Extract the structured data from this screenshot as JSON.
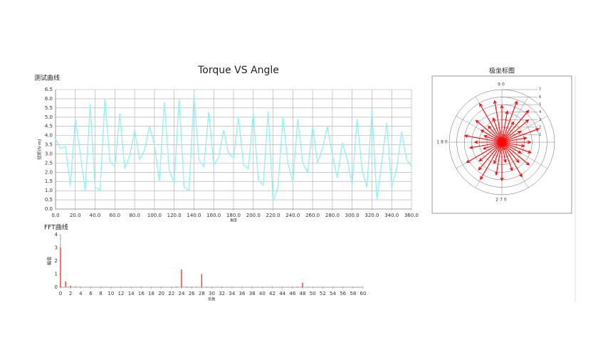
{
  "page_title": "Torque VS Angle",
  "chart_data": [
    {
      "type": "line",
      "title": "测试曲线",
      "x_label": "角度",
      "y_label": "扭矩(N·m)",
      "color": "#8ff3f3",
      "grid": true,
      "x": [
        0,
        5,
        10,
        15,
        20,
        25,
        30,
        35,
        40,
        45,
        50,
        55,
        60,
        65,
        70,
        75,
        80,
        85,
        90,
        95,
        100,
        105,
        110,
        115,
        120,
        125,
        130,
        135,
        140,
        145,
        150,
        155,
        160,
        165,
        170,
        175,
        180,
        185,
        190,
        195,
        200,
        205,
        210,
        215,
        220,
        225,
        230,
        235,
        240,
        245,
        250,
        255,
        260,
        265,
        270,
        275,
        280,
        285,
        290,
        295,
        300,
        305,
        310,
        315,
        320,
        325,
        330,
        335,
        340,
        345,
        350,
        355,
        360
      ],
      "values": [
        3.8,
        3.3,
        3.4,
        1.3,
        4.9,
        3.0,
        1.0,
        5.7,
        1.2,
        1.0,
        6.0,
        2.6,
        2.3,
        5.2,
        2.2,
        2.9,
        4.3,
        2.7,
        3.2,
        4.5,
        3.5,
        1.5,
        5.8,
        2.1,
        1.4,
        6.0,
        1.2,
        1.0,
        6.2,
        2.7,
        2.3,
        5.3,
        2.4,
        2.8,
        4.3,
        3.0,
        2.8,
        5.0,
        2.4,
        2.2,
        5.2,
        1.6,
        1.3,
        5.3,
        0.4,
        1.2,
        5.0,
        2.5,
        1.5,
        4.9,
        2.5,
        2.0,
        4.5,
        2.5,
        3.3,
        4.5,
        2.9,
        1.7,
        3.6,
        2.7,
        1.3,
        4.9,
        2.1,
        1.2,
        5.4,
        0.5,
        2.6,
        4.7,
        1.2,
        2.2,
        4.2,
        2.7,
        2.3
      ],
      "xlim": [
        0,
        360
      ],
      "xticks": [
        {
          "value": 0,
          "label": "0.0"
        },
        {
          "value": 20,
          "label": "20.0"
        },
        {
          "value": 40,
          "label": "40.0"
        },
        {
          "value": 60,
          "label": "60.0"
        },
        {
          "value": 80,
          "label": "80.0"
        },
        {
          "value": 100,
          "label": "100.0"
        },
        {
          "value": 120,
          "label": "120.0"
        },
        {
          "value": 140,
          "label": "140.0"
        },
        {
          "value": 160,
          "label": "160.0"
        },
        {
          "value": 180,
          "label": "180.0"
        },
        {
          "value": 200,
          "label": "200.0"
        },
        {
          "value": 220,
          "label": "220.0"
        },
        {
          "value": 240,
          "label": "240.0"
        },
        {
          "value": 260,
          "label": "260.0"
        },
        {
          "value": 280,
          "label": "280.0"
        },
        {
          "value": 300,
          "label": "300.0"
        },
        {
          "value": 320,
          "label": "320.0"
        },
        {
          "value": 340,
          "label": "340.0"
        },
        {
          "value": 360,
          "label": "360.0"
        }
      ],
      "ylim": [
        0,
        6.5
      ],
      "yticks": [
        {
          "value": 0,
          "label": "0.0"
        },
        0.5,
        {
          "value": 1,
          "label": "1.0"
        },
        1.5,
        {
          "value": 2,
          "label": "2.0"
        },
        2.5,
        {
          "value": 3,
          "label": "3.0"
        },
        3.5,
        {
          "value": 4,
          "label": "4.0"
        },
        4.5,
        {
          "value": 5,
          "label": "5.0"
        },
        5.5,
        {
          "value": 6,
          "label": "6.0"
        },
        6.5
      ]
    },
    {
      "type": "bar",
      "title": "FFT曲线",
      "x_label": "阶数",
      "y_label": "幅值",
      "color": "#ff3333",
      "x": [
        0,
        1,
        2,
        3,
        4,
        5,
        6,
        7,
        8,
        9,
        10,
        11,
        12,
        13,
        14,
        15,
        16,
        17,
        18,
        19,
        20,
        21,
        22,
        23,
        24,
        25,
        26,
        27,
        28,
        29,
        30,
        31,
        32,
        33,
        34,
        35,
        36,
        37,
        38,
        39,
        40,
        41,
        42,
        43,
        44,
        45,
        46,
        47,
        48,
        49,
        50,
        51,
        52,
        53,
        54,
        55,
        56,
        57,
        58,
        59,
        60
      ],
      "values": [
        3.0,
        0.45,
        0.12,
        0.05,
        0.03,
        0.02,
        0.03,
        0.02,
        0.02,
        0.03,
        0.02,
        0.02,
        0.03,
        0.02,
        0.02,
        0.02,
        0.03,
        0.02,
        0.02,
        0.02,
        0.03,
        0.02,
        0.02,
        0.04,
        1.35,
        0.05,
        0.03,
        0.04,
        1.0,
        0.04,
        0.02,
        0.02,
        0.03,
        0.02,
        0.02,
        0.02,
        0.02,
        0.02,
        0.02,
        0.02,
        0.02,
        0.02,
        0.02,
        0.02,
        0.02,
        0.02,
        0.03,
        0.04,
        0.35,
        0.03,
        0.02,
        0.02,
        0.02,
        0.02,
        0.02,
        0.02,
        0.02,
        0.02,
        0.02,
        0.02,
        0.02
      ],
      "xlim": [
        0,
        60
      ],
      "xticks": [
        0,
        2,
        4,
        6,
        8,
        10,
        12,
        14,
        16,
        18,
        20,
        22,
        24,
        26,
        28,
        30,
        32,
        34,
        36,
        38,
        40,
        42,
        44,
        46,
        48,
        50,
        52,
        54,
        56,
        58,
        60
      ],
      "ylim": [
        0,
        4
      ],
      "yticks": [
        0,
        1,
        2,
        3,
        4
      ]
    },
    {
      "type": "polar",
      "title": "极坐标图",
      "color": "#ff0000",
      "angles": [
        0,
        10,
        20,
        30,
        40,
        50,
        60,
        70,
        80,
        90,
        100,
        110,
        120,
        130,
        140,
        150,
        160,
        170,
        180,
        190,
        200,
        210,
        220,
        230,
        240,
        250,
        260,
        270,
        280,
        290,
        300,
        310,
        320,
        330,
        340,
        350
      ],
      "values": [
        3.8,
        3.3,
        5.2,
        2.9,
        4.6,
        5.5,
        3.1,
        5.8,
        4.2,
        4.9,
        5.6,
        3.4,
        5.9,
        2.8,
        4.5,
        3.2,
        2.5,
        5.0,
        3.6,
        4.3,
        2.6,
        5.4,
        3.9,
        4.8,
        5.7,
        3.0,
        4.4,
        5.1,
        2.7,
        4.0,
        5.3,
        3.5,
        4.7,
        2.9,
        4.1,
        3.0
      ],
      "rlim": [
        0,
        7
      ],
      "rticks": [
        1,
        2,
        3,
        4,
        5,
        6,
        7
      ],
      "angle_ticks": [
        90,
        180,
        270
      ]
    }
  ]
}
